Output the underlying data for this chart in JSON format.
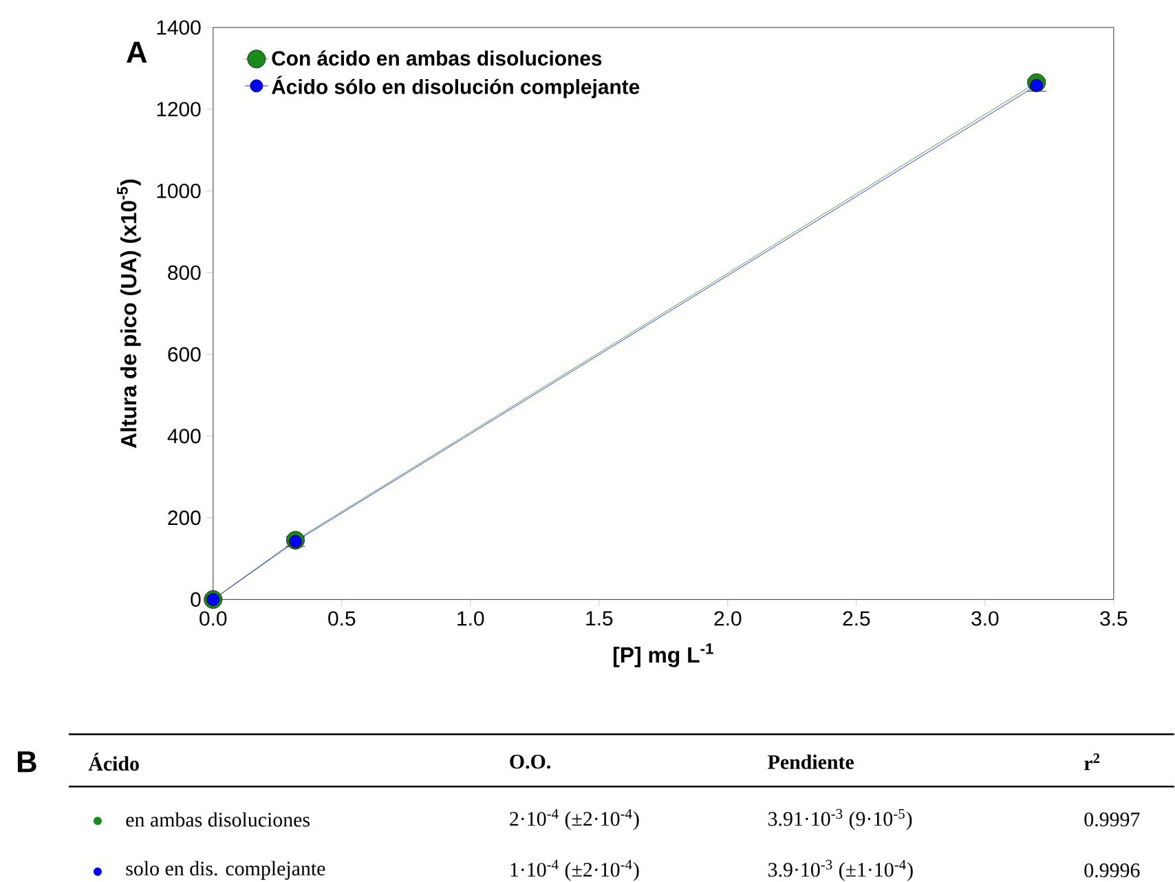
{
  "chart_data": {
    "type": "line",
    "xlabel": "[P] mg L$^{-1}$",
    "ylabel": "Altura de pico (UA) (x10$^{-5}$)",
    "x": [
      0,
      0.32,
      3.2
    ],
    "series": [
      {
        "name": "Con ácido en ambas disoluciones",
        "color": "#1a8a1a",
        "values": [
          0,
          145,
          1265
        ]
      },
      {
        "name": "Ácido sólo en disolución complejante",
        "color": "#0000ff",
        "values": [
          0,
          142,
          1258
        ],
        "errors": [
          null,
          12,
          14
        ]
      }
    ],
    "xlim": [
      0,
      3.5
    ],
    "xticks": [
      {
        "value": 0,
        "label": "0.0"
      },
      0.5,
      {
        "value": 1,
        "label": "1.0"
      },
      1.5,
      {
        "value": 2,
        "label": "2.0"
      },
      2.5,
      {
        "value": 3,
        "label": "3.0"
      },
      3.5
    ],
    "ylim": [
      0,
      1400
    ],
    "yticks": [
      0,
      200,
      400,
      600,
      800,
      1000,
      1200,
      1400
    ],
    "marker": "circle",
    "legend": "top left",
    "grid": false,
    "annotations": [
      "A",
      "B",
      "Ácido",
      "O.O.",
      "Pendiente",
      "r$^{2}$",
      "en ambas disoluciones",
      "2·10$^{-4}$ (±2·10$^{-4}$)",
      "3.91·10$^{-3}$ (9·10$^{-5}$)",
      "0.9997",
      "solo en dis. complejante",
      "1·10$^{-4}$ (±2·10$^{-4}$)",
      "3.9·10$^{-3}$ (±1·10$^{-4}$)",
      "0.9996"
    ]
  }
}
